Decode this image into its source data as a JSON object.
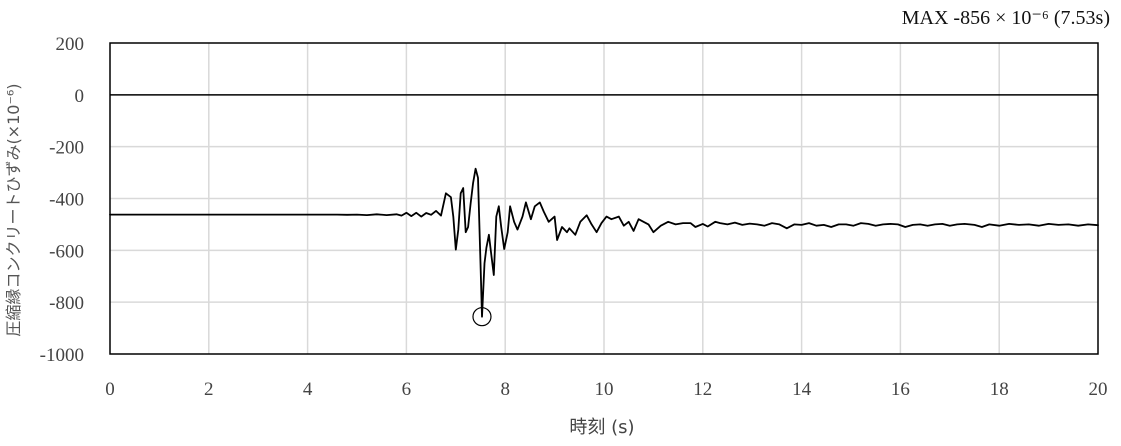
{
  "chart_data": {
    "type": "line",
    "title": "",
    "xlabel": "時刻 (s)",
    "ylabel": "圧縮縁コンクリートひずみ(×10⁻⁶)",
    "xlim": [
      0,
      20
    ],
    "ylim": [
      -1000,
      200
    ],
    "xticks": [
      "0",
      "2",
      "4",
      "6",
      "8",
      "10",
      "12",
      "14",
      "16",
      "18",
      "20"
    ],
    "yticks": [
      "200",
      "0",
      "-200",
      "-400",
      "-600",
      "-800",
      "-1000"
    ],
    "grid": true,
    "annotation": {
      "text": "MAX  -856 × 10⁻⁶ (7.53s)",
      "x": 7.53,
      "y": -856
    },
    "series": [
      {
        "color": "#000000",
        "points": [
          [
            0,
            -462
          ],
          [
            4.6,
            -462
          ],
          [
            4.8,
            -463
          ],
          [
            5.0,
            -462
          ],
          [
            5.2,
            -464
          ],
          [
            5.4,
            -461
          ],
          [
            5.6,
            -464
          ],
          [
            5.8,
            -461
          ],
          [
            5.9,
            -466
          ],
          [
            6.0,
            -455
          ],
          [
            6.1,
            -468
          ],
          [
            6.2,
            -455
          ],
          [
            6.3,
            -470
          ],
          [
            6.4,
            -456
          ],
          [
            6.5,
            -463
          ],
          [
            6.6,
            -448
          ],
          [
            6.7,
            -466
          ],
          [
            6.8,
            -380
          ],
          [
            6.9,
            -395
          ],
          [
            6.95,
            -470
          ],
          [
            7.0,
            -597
          ],
          [
            7.05,
            -520
          ],
          [
            7.1,
            -380
          ],
          [
            7.15,
            -360
          ],
          [
            7.2,
            -530
          ],
          [
            7.25,
            -510
          ],
          [
            7.3,
            -420
          ],
          [
            7.35,
            -340
          ],
          [
            7.4,
            -285
          ],
          [
            7.45,
            -320
          ],
          [
            7.5,
            -650
          ],
          [
            7.53,
            -856
          ],
          [
            7.58,
            -650
          ],
          [
            7.62,
            -590
          ],
          [
            7.67,
            -540
          ],
          [
            7.72,
            -620
          ],
          [
            7.77,
            -695
          ],
          [
            7.82,
            -470
          ],
          [
            7.87,
            -430
          ],
          [
            7.92,
            -510
          ],
          [
            7.98,
            -595
          ],
          [
            8.05,
            -530
          ],
          [
            8.1,
            -430
          ],
          [
            8.18,
            -490
          ],
          [
            8.25,
            -520
          ],
          [
            8.35,
            -470
          ],
          [
            8.42,
            -415
          ],
          [
            8.52,
            -480
          ],
          [
            8.6,
            -430
          ],
          [
            8.7,
            -415
          ],
          [
            8.78,
            -450
          ],
          [
            8.88,
            -490
          ],
          [
            9.0,
            -470
          ],
          [
            9.05,
            -560
          ],
          [
            9.15,
            -510
          ],
          [
            9.25,
            -530
          ],
          [
            9.3,
            -515
          ],
          [
            9.42,
            -540
          ],
          [
            9.52,
            -490
          ],
          [
            9.65,
            -465
          ],
          [
            9.75,
            -500
          ],
          [
            9.85,
            -530
          ],
          [
            9.95,
            -495
          ],
          [
            10.05,
            -470
          ],
          [
            10.15,
            -480
          ],
          [
            10.3,
            -470
          ],
          [
            10.4,
            -505
          ],
          [
            10.5,
            -490
          ],
          [
            10.6,
            -525
          ],
          [
            10.7,
            -480
          ],
          [
            10.8,
            -490
          ],
          [
            10.9,
            -500
          ],
          [
            11.0,
            -530
          ],
          [
            11.15,
            -505
          ],
          [
            11.3,
            -490
          ],
          [
            11.45,
            -500
          ],
          [
            11.6,
            -495
          ],
          [
            11.75,
            -495
          ],
          [
            11.85,
            -510
          ],
          [
            12.0,
            -498
          ],
          [
            12.1,
            -508
          ],
          [
            12.25,
            -490
          ],
          [
            12.35,
            -495
          ],
          [
            12.5,
            -500
          ],
          [
            12.65,
            -493
          ],
          [
            12.8,
            -502
          ],
          [
            12.95,
            -497
          ],
          [
            13.1,
            -500
          ],
          [
            13.25,
            -505
          ],
          [
            13.4,
            -495
          ],
          [
            13.55,
            -500
          ],
          [
            13.7,
            -515
          ],
          [
            13.85,
            -500
          ],
          [
            14.0,
            -502
          ],
          [
            14.15,
            -495
          ],
          [
            14.3,
            -505
          ],
          [
            14.45,
            -502
          ],
          [
            14.6,
            -510
          ],
          [
            14.75,
            -500
          ],
          [
            14.9,
            -500
          ],
          [
            15.05,
            -505
          ],
          [
            15.2,
            -495
          ],
          [
            15.35,
            -498
          ],
          [
            15.5,
            -505
          ],
          [
            15.65,
            -500
          ],
          [
            15.8,
            -498
          ],
          [
            15.95,
            -500
          ],
          [
            16.1,
            -510
          ],
          [
            16.25,
            -502
          ],
          [
            16.4,
            -500
          ],
          [
            16.55,
            -505
          ],
          [
            16.7,
            -500
          ],
          [
            16.85,
            -498
          ],
          [
            17.0,
            -505
          ],
          [
            17.15,
            -500
          ],
          [
            17.3,
            -498
          ],
          [
            17.5,
            -502
          ],
          [
            17.65,
            -510
          ],
          [
            17.8,
            -500
          ],
          [
            18.0,
            -505
          ],
          [
            18.2,
            -498
          ],
          [
            18.4,
            -502
          ],
          [
            18.6,
            -500
          ],
          [
            18.8,
            -505
          ],
          [
            19.0,
            -498
          ],
          [
            19.2,
            -502
          ],
          [
            19.4,
            -500
          ],
          [
            19.6,
            -505
          ],
          [
            19.8,
            -500
          ],
          [
            20.0,
            -503
          ]
        ]
      }
    ]
  }
}
